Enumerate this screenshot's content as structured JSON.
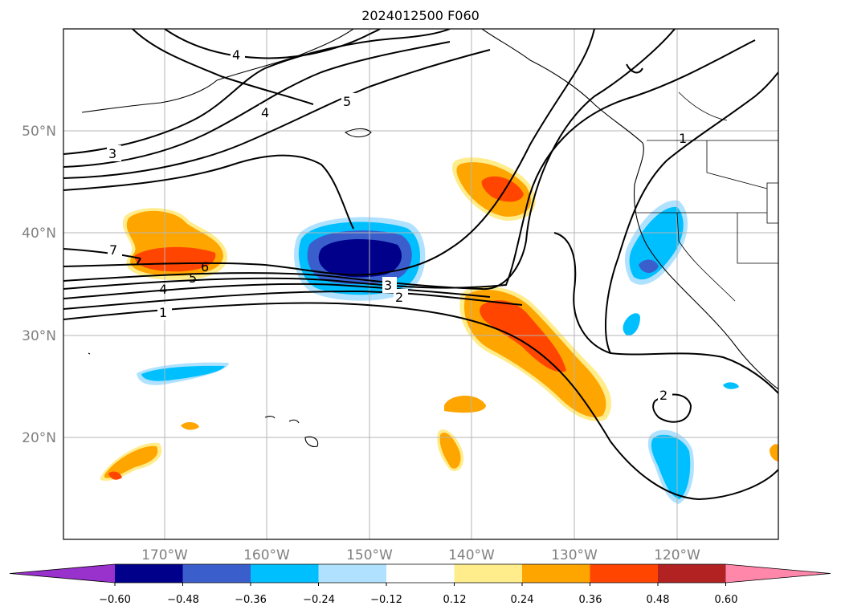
{
  "title": "2024012500 F060",
  "map": {
    "lat_labels": [
      "50°N",
      "40°N",
      "30°N",
      "20°N"
    ],
    "lon_labels": [
      "170°W",
      "160°W",
      "150°W",
      "140°W",
      "130°W",
      "120°W"
    ],
    "gridlines": true,
    "contour_labels": [
      "4",
      "4",
      "5",
      "3",
      "7",
      "6",
      "5",
      "4",
      "1",
      "3",
      "2",
      "1",
      "2"
    ]
  },
  "colorbar": {
    "ticks": [
      "−0.60",
      "−0.48",
      "−0.36",
      "−0.24",
      "−0.12",
      "0.12",
      "0.24",
      "0.36",
      "0.48",
      "0.60"
    ],
    "colors": [
      "#9932cc",
      "#00008b",
      "#3a5fcd",
      "#00bfff",
      "#b0e2ff",
      "#ffffff",
      "#ffec8b",
      "#ffa500",
      "#ff4500",
      "#b22222",
      "#ff88aa"
    ],
    "extend": "both"
  }
}
